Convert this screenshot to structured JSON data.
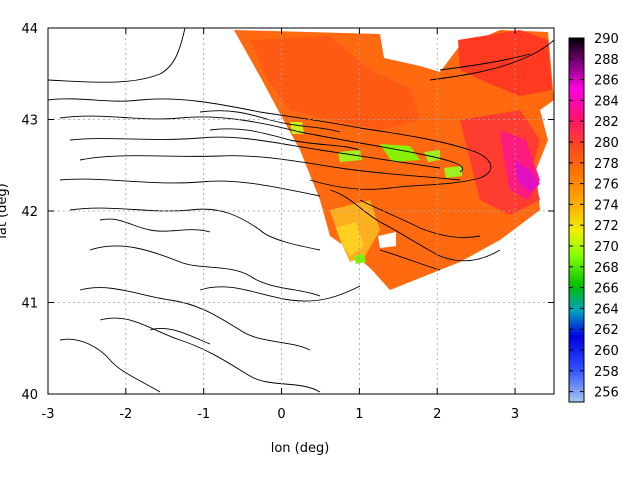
{
  "chart_data": {
    "type": "heatmap",
    "title": "",
    "xlabel": "lon (deg)",
    "ylabel": "lat (deg)",
    "xlim": [
      -3,
      3.5
    ],
    "ylim": [
      40,
      44
    ],
    "xticks": [
      "-3",
      "-2",
      "-1",
      "0",
      "1",
      "2",
      "3"
    ],
    "yticks": [
      "40",
      "41",
      "42",
      "43",
      "44"
    ],
    "grid": true,
    "colorbar": {
      "range": [
        255,
        290
      ],
      "ticks": [
        "256",
        "258",
        "260",
        "262",
        "264",
        "266",
        "268",
        "270",
        "272",
        "274",
        "276",
        "278",
        "280",
        "282",
        "284",
        "286",
        "288",
        "290"
      ]
    },
    "overlay": "topographic contour lines",
    "value_regions": [
      {
        "description": "northern plume",
        "typical_value": 276
      },
      {
        "description": "eastern coast",
        "typical_value": 280
      },
      {
        "description": "Pyrenees green patches",
        "typical_value": 268
      },
      {
        "description": "southern tip",
        "typical_value": 270
      }
    ]
  }
}
